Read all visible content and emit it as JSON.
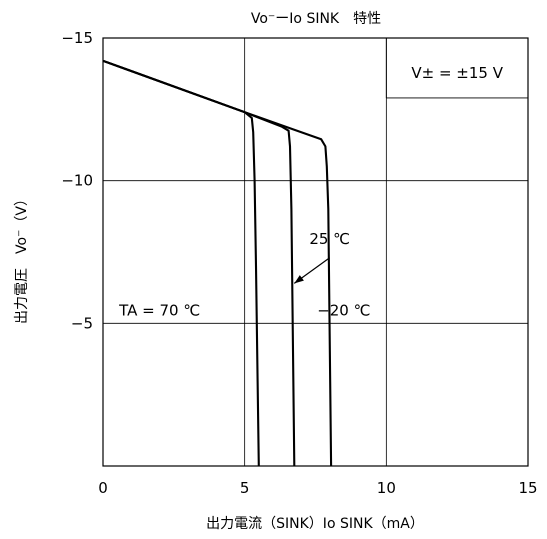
{
  "chart_data": {
    "type": "line",
    "title": "Vo⁻ーIo SINK　特性",
    "xlabel": "出力電流（SINK）Io SINK（mA）",
    "ylabel": "出力電圧　Vo⁻（V）",
    "xlim": [
      0,
      15
    ],
    "ylim": [
      0,
      -15
    ],
    "x_ticks": [
      0,
      5,
      10,
      15
    ],
    "y_ticks": [
      -15,
      -10,
      -5
    ],
    "x_tick_labels": [
      "0",
      "5",
      "10",
      "15"
    ],
    "y_tick_labels": [
      "−15",
      "−10",
      "−5"
    ],
    "grid": true,
    "condition_box": "V± = ±15 V",
    "series": [
      {
        "name": "TA = 70 ℃",
        "label_pos": [
          2.0,
          -5.0
        ],
        "points": [
          [
            0,
            -14.2
          ],
          [
            5.0,
            -12.4
          ],
          [
            5.25,
            -12.2
          ],
          [
            5.3,
            -11.7
          ],
          [
            5.35,
            -10.0
          ],
          [
            5.4,
            -7.0
          ],
          [
            5.5,
            -0.0
          ]
        ]
      },
      {
        "name": "25 ℃",
        "label_pos": [
          8.0,
          -7.5
        ],
        "points": [
          [
            0,
            -14.2
          ],
          [
            5.0,
            -12.4
          ],
          [
            6.3,
            -11.9
          ],
          [
            6.55,
            -11.75
          ],
          [
            6.6,
            -11.2
          ],
          [
            6.65,
            -9.0
          ],
          [
            6.75,
            -0.0
          ]
        ]
      },
      {
        "name": "−20 ℃",
        "label_pos": [
          8.5,
          -5.0
        ],
        "points": [
          [
            0,
            -14.2
          ],
          [
            5.0,
            -12.4
          ],
          [
            7.7,
            -11.45
          ],
          [
            7.85,
            -11.2
          ],
          [
            7.9,
            -10.5
          ],
          [
            7.95,
            -9.0
          ],
          [
            8.05,
            -0.0
          ]
        ]
      }
    ],
    "arrow": {
      "label": "25 ℃",
      "from": [
        8.0,
        -7.3
      ],
      "to": [
        6.75,
        -6.4
      ]
    }
  }
}
